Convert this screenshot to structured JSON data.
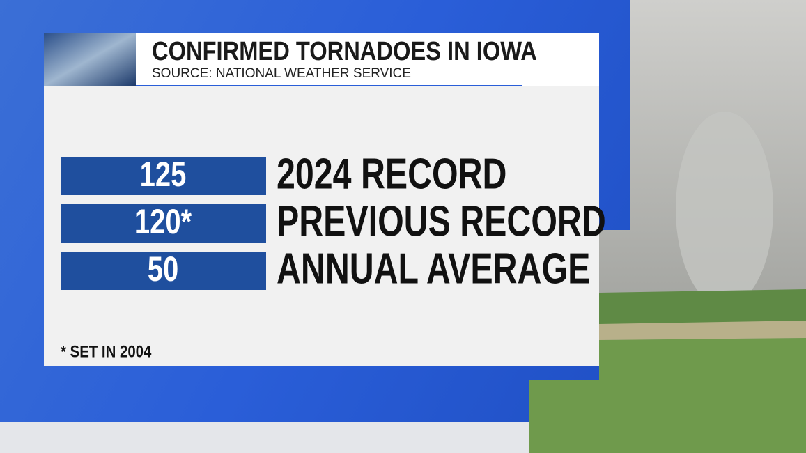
{
  "header": {
    "title": "CONFIRMED TORNADOES IN IOWA",
    "source": "SOURCE: NATIONAL WEATHER SERVICE"
  },
  "rows": [
    {
      "value": "125",
      "label": "2024 RECORD"
    },
    {
      "value": "120*",
      "label": "PREVIOUS RECORD"
    },
    {
      "value": "50",
      "label": "ANNUAL AVERAGE"
    }
  ],
  "footnote": "* SET IN 2004"
}
